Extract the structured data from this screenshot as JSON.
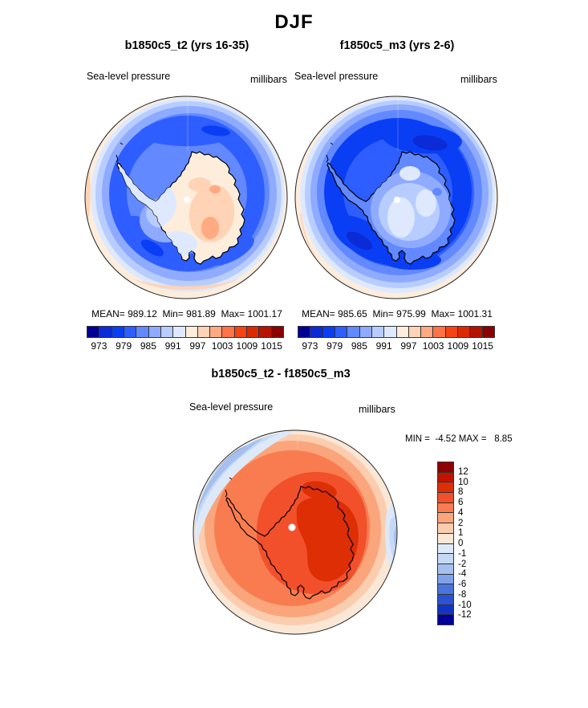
{
  "figure_title": "DJF",
  "panels": {
    "left": {
      "title": "b1850c5_t2 (yrs 16-35)",
      "field": "Sea-level pressure",
      "units": "millibars",
      "stats": "MEAN= 989.12  Min= 981.89  Max= 1001.17",
      "cb_labels": [
        "973",
        "979",
        "985",
        "991",
        "997",
        "1003",
        "1009",
        "1015"
      ]
    },
    "right": {
      "title": "f1850c5_m3 (yrs 2-6)",
      "field": "Sea-level pressure",
      "units": "millibars",
      "stats": "MEAN= 985.65  Min= 975.99  Max= 1001.31",
      "cb_labels": [
        "973",
        "979",
        "985",
        "991",
        "997",
        "1003",
        "1009",
        "1015"
      ]
    },
    "diff": {
      "title": "b1850c5_t2 - f1850c5_m3",
      "field": "Sea-level pressure",
      "units": "millibars",
      "stats": "MIN =  -4.52 MAX =   8.85",
      "cb_labels": [
        "12",
        "10",
        "8",
        "6",
        "4",
        "2",
        "1",
        "0",
        "-1",
        "-2",
        "-4",
        "-6",
        "-8",
        "-10",
        "-12"
      ]
    }
  },
  "palette_slp_16": [
    "#000096",
    "#0B2BD6",
    "#0A3EF5",
    "#2E5EFF",
    "#6289FF",
    "#8FABFF",
    "#B8CDFF",
    "#DEE9FF",
    "#FFEDDC",
    "#FFD3B5",
    "#FFAA82",
    "#FF7347",
    "#F54314",
    "#DB2A02",
    "#B51200",
    "#8B0000"
  ],
  "palette_diff_16": [
    "#000099",
    "#1233C4",
    "#2A52D4",
    "#4A73DC",
    "#7FA2E8",
    "#A5C0EE",
    "#C6D9F4",
    "#DDE9F8",
    "#FBE7D6",
    "#FBCDAE",
    "#FAA57C",
    "#F97C50",
    "#F1502B",
    "#DD2E06",
    "#C01300",
    "#8F0000"
  ],
  "chart_data": [
    {
      "type": "heatmap",
      "subtype": "filled-contour-south-polar-map",
      "season": "DJF",
      "title": "b1850c5_t2 (yrs 16-35)",
      "variable": "Sea-level pressure",
      "units": "millibars",
      "region": "Antarctica, south polar stereographic view",
      "stats": {
        "mean": 989.12,
        "min": 981.89,
        "max": 1001.17
      },
      "contour_levels": [
        973,
        976,
        979,
        982,
        985,
        988,
        991,
        994,
        997,
        1000,
        1003,
        1006,
        1009,
        1012,
        1015
      ],
      "labeled_levels": [
        973,
        979,
        985,
        991,
        997,
        1003,
        1009,
        1015
      ],
      "legend_position": "bottom",
      "description": "Low pressure (blues) over Southern Ocean with circumpolar trough; higher pressure (cream/peach) over Antarctic interior and at map edge midlatitudes."
    },
    {
      "type": "heatmap",
      "subtype": "filled-contour-south-polar-map",
      "season": "DJF",
      "title": "f1850c5_m3 (yrs 2-6)",
      "variable": "Sea-level pressure",
      "units": "millibars",
      "region": "Antarctica, south polar stereographic view",
      "stats": {
        "mean": 985.65,
        "min": 975.99,
        "max": 1001.31
      },
      "contour_levels": [
        973,
        976,
        979,
        982,
        985,
        988,
        991,
        994,
        997,
        1000,
        1003,
        1006,
        1009,
        1012,
        1015
      ],
      "labeled_levels": [
        973,
        979,
        985,
        991,
        997,
        1003,
        1009,
        1015
      ],
      "legend_position": "bottom",
      "description": "Deeper lows (dark blues) over Southern Ocean; continent interior light blue; peach ring only at outer map edge."
    },
    {
      "type": "heatmap",
      "subtype": "filled-contour-south-polar-map",
      "season": "DJF",
      "title": "b1850c5_t2 - f1850c5_m3",
      "variable": "Sea-level pressure difference",
      "units": "millibars",
      "stats": {
        "min": -4.52,
        "max": 8.85
      },
      "contour_levels": [
        -12,
        -10,
        -8,
        -6,
        -4,
        -2,
        -1,
        0,
        1,
        2,
        4,
        6,
        8,
        10,
        12
      ],
      "legend_position": "right",
      "description": "Positive difference (oranges/reds) over most of Antarctica, strongest over East Antarctica; negative (blues) wedge at upper-left rim and along right edge."
    }
  ]
}
